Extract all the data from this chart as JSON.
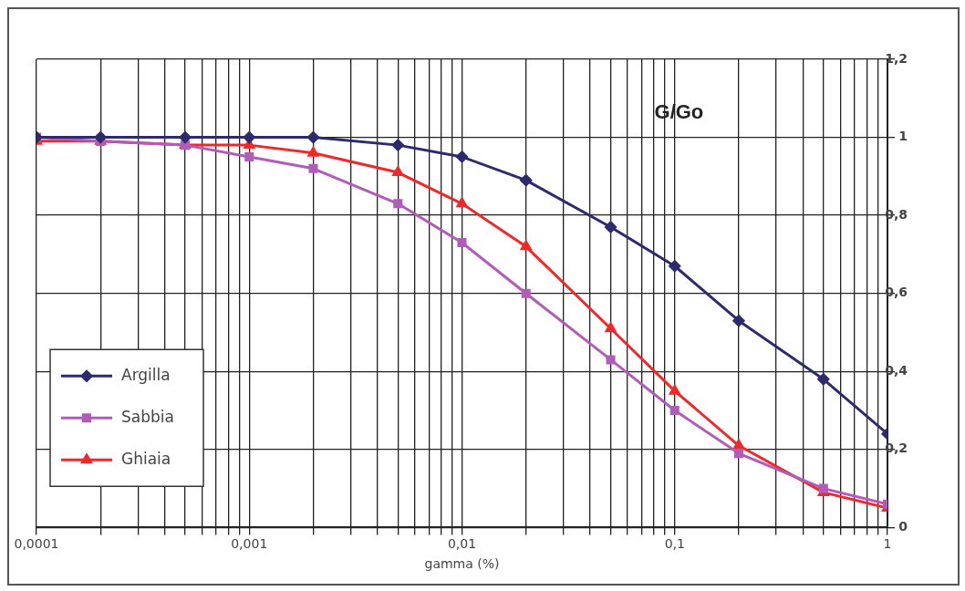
{
  "chart_data": {
    "type": "line",
    "title": "G/Go",
    "xlabel": "gamma (%)",
    "x": [
      0.0001,
      0.0002,
      0.0005,
      0.001,
      0.002,
      0.005,
      0.01,
      0.02,
      0.05,
      0.1,
      0.2,
      0.5,
      1
    ],
    "series": [
      {
        "name": "Argilla",
        "color": "#2e2a6e",
        "marker": "diamond",
        "values": [
          1,
          1,
          1,
          1,
          1,
          0.98,
          0.95,
          0.89,
          0.77,
          0.67,
          0.53,
          0.38,
          0.24
        ]
      },
      {
        "name": "Sabbia",
        "color": "#b05cb8",
        "marker": "square",
        "values": [
          1,
          0.99,
          0.98,
          0.95,
          0.92,
          0.83,
          0.73,
          0.6,
          0.43,
          0.3,
          0.19,
          0.1,
          0.06
        ]
      },
      {
        "name": "Ghiaia",
        "color": "#f0282a",
        "marker": "triangle",
        "values": [
          0.99,
          0.99,
          0.98,
          0.98,
          0.96,
          0.91,
          0.83,
          0.72,
          0.51,
          0.35,
          0.21,
          0.09,
          0.05
        ]
      }
    ],
    "xlim": [
      0.0001,
      1
    ],
    "xticks": [
      {
        "value": 0.0001,
        "label": "0,0001"
      },
      {
        "value": 0.0002,
        "label": null
      },
      {
        "value": 0.0003,
        "label": null
      },
      {
        "value": 0.0004,
        "label": null
      },
      {
        "value": 0.0005,
        "label": null
      },
      {
        "value": 0.0006,
        "label": null
      },
      {
        "value": 0.0007,
        "label": null
      },
      {
        "value": 0.0008,
        "label": null
      },
      {
        "value": 0.0009,
        "label": null
      },
      {
        "value": 0.001,
        "label": "0,001"
      },
      {
        "value": 0.002,
        "label": null
      },
      {
        "value": 0.003,
        "label": null
      },
      {
        "value": 0.004,
        "label": null
      },
      {
        "value": 0.005,
        "label": null
      },
      {
        "value": 0.006,
        "label": null
      },
      {
        "value": 0.007,
        "label": null
      },
      {
        "value": 0.008,
        "label": null
      },
      {
        "value": 0.009,
        "label": null
      },
      {
        "value": 0.01,
        "label": "0,01"
      },
      {
        "value": 0.02,
        "label": null
      },
      {
        "value": 0.03,
        "label": null
      },
      {
        "value": 0.04,
        "label": null
      },
      {
        "value": 0.05,
        "label": null
      },
      {
        "value": 0.06,
        "label": null
      },
      {
        "value": 0.07,
        "label": null
      },
      {
        "value": 0.08,
        "label": null
      },
      {
        "value": 0.09,
        "label": null
      },
      {
        "value": 0.1,
        "label": "0,1"
      },
      {
        "value": 0.2,
        "label": null
      },
      {
        "value": 0.3,
        "label": null
      },
      {
        "value": 0.4,
        "label": null
      },
      {
        "value": 0.5,
        "label": null
      },
      {
        "value": 0.6,
        "label": null
      },
      {
        "value": 0.7,
        "label": null
      },
      {
        "value": 0.8,
        "label": null
      },
      {
        "value": 0.9,
        "label": null
      },
      {
        "value": 1,
        "label": "1"
      }
    ],
    "ylim": [
      0,
      1.2
    ],
    "yticks": [
      0,
      {
        "value": 0.2,
        "label": "0,2"
      },
      {
        "value": 0.4,
        "label": "0,4"
      },
      {
        "value": 0.6,
        "label": "0,6"
      },
      {
        "value": 0.8,
        "label": "0,8"
      },
      1,
      {
        "value": 1.2,
        "label": "1,2"
      }
    ],
    "log": "x",
    "grid": true,
    "legend": "left",
    "line_style": "solid"
  }
}
